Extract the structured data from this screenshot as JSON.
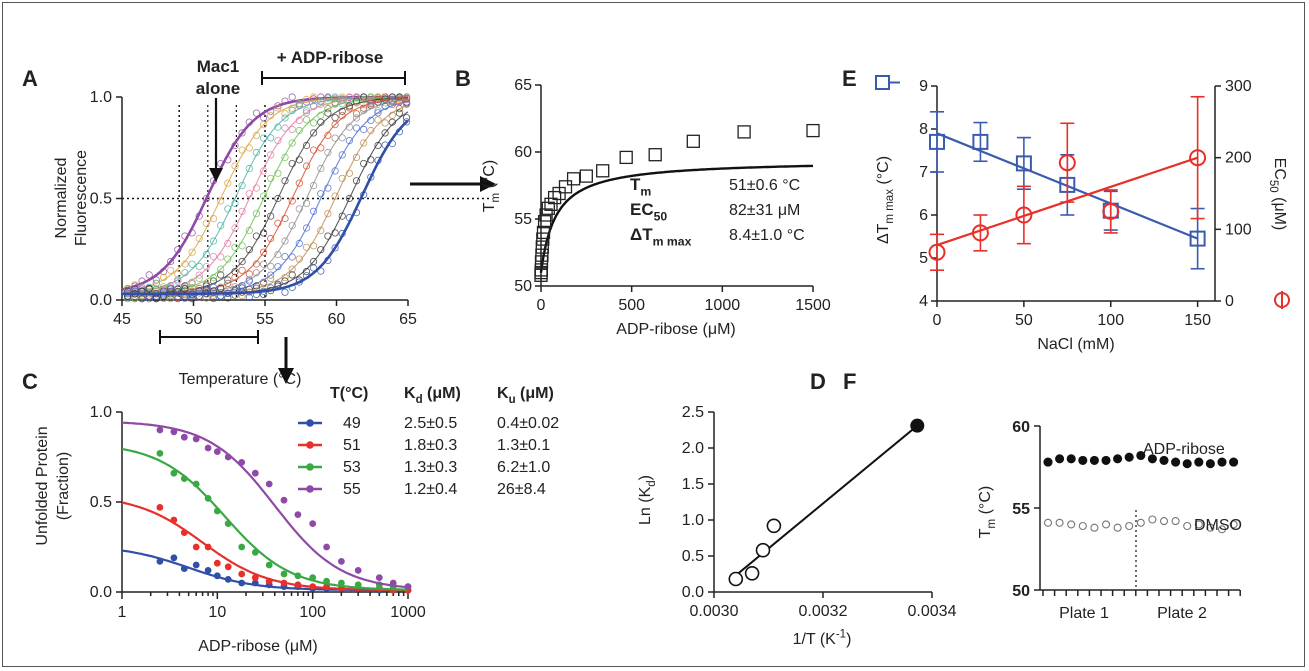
{
  "panels": [
    {
      "label": "A"
    },
    {
      "label": "B"
    },
    {
      "label": "C"
    },
    {
      "label": "D"
    },
    {
      "label": "E"
    },
    {
      "label": "F"
    }
  ],
  "annotations": {
    "mac1_line1": "Mac1",
    "mac1_line2": "alone",
    "adp_ribose": "+ ADP-ribose"
  },
  "panel_b_table": {
    "rows": [
      {
        "label": "T",
        "sub": "m",
        "value": "51±0.6 °C"
      },
      {
        "label": "EC",
        "sub": "50",
        "value": "82±31 μM"
      },
      {
        "label": "ΔT",
        "sub": "m max",
        "value": "8.4±1.0 °C"
      }
    ]
  },
  "panel_c_table": {
    "headers": [
      "T(°C)",
      "K",
      "K"
    ],
    "header_subs": [
      "",
      "d",
      "u"
    ],
    "header_units": [
      "",
      " (μM)",
      " (μM)"
    ],
    "rows": [
      {
        "t": "49",
        "kd": "2.5±0.5",
        "ku": "0.4±0.02",
        "color": "#2f4fa8"
      },
      {
        "t": "51",
        "kd": "1.8±0.3",
        "ku": "1.3±0.1",
        "color": "#e8302a"
      },
      {
        "t": "53",
        "kd": "1.3±0.3",
        "ku": "6.2±1.0",
        "color": "#3aa845"
      },
      {
        "t": "55",
        "kd": "1.2±0.4",
        "ku": "26±8.4",
        "color": "#8e4aa6"
      }
    ]
  },
  "panel_f_labels": {
    "adp": "ADP-ribose",
    "dmso": "DMSO"
  },
  "chart_data": [
    {
      "panel": "A",
      "type": "scatter",
      "xlabel": "Temperature (°C)",
      "ylabel_line1": "Normalized",
      "ylabel_line2": "Fluorescence",
      "xlim": [
        45,
        65
      ],
      "ylim": [
        0,
        1.0
      ],
      "xticks": [
        "45",
        "50",
        "55",
        "60",
        "65"
      ],
      "yticks": [
        "0.0",
        "0.5",
        "1.0"
      ],
      "series": [
        {
          "tm": 51.0,
          "color": "#8e4aa6"
        },
        {
          "tm": 52.0,
          "color": "#d6a23b"
        },
        {
          "tm": 53.0,
          "color": "#48b0a8"
        },
        {
          "tm": 54.0,
          "color": "#e07aa6"
        },
        {
          "tm": 55.0,
          "color": "#6dbf50"
        },
        {
          "tm": 56.0,
          "color": "#3a3a3a"
        },
        {
          "tm": 57.0,
          "color": "#d4492a"
        },
        {
          "tm": 58.0,
          "color": "#8c8c8c"
        },
        {
          "tm": 59.0,
          "color": "#4b6ad1"
        },
        {
          "tm": 60.0,
          "color": "#b98a4c"
        },
        {
          "tm": 61.0,
          "color": "#2f2f2f"
        },
        {
          "tm": 61.8,
          "color": "#2f4fa8"
        }
      ]
    },
    {
      "panel": "B",
      "type": "scatter",
      "xlabel": "ADP-ribose (μM)",
      "ylabel": "T",
      "ylabel_sub": "m",
      "ylabel_unit": " (°C)",
      "xlim": [
        0,
        1500
      ],
      "ylim": [
        50,
        65
      ],
      "xticks": [
        "0",
        "500",
        "1000",
        "1500"
      ],
      "yticks": [
        "50",
        "55",
        "60",
        "65"
      ],
      "x": [
        0,
        0.8,
        1.5,
        3,
        5,
        7,
        10,
        14,
        20,
        28,
        40,
        55,
        75,
        100,
        135,
        180,
        250,
        340,
        470,
        630,
        840,
        1120,
        1500
      ],
      "y": [
        50.8,
        51.0,
        51.2,
        51.8,
        52.3,
        52.9,
        53.5,
        54.0,
        54.8,
        55.3,
        55.8,
        56.1,
        56.6,
        56.9,
        57.4,
        58.0,
        58.2,
        58.6,
        59.6,
        59.8,
        60.8,
        61.5,
        61.6
      ],
      "fit": {
        "tm0": 51,
        "ec50": 82,
        "dtm": 8.4
      }
    },
    {
      "panel": "C",
      "type": "scatter",
      "xlabel": "ADP-ribose (μM)",
      "ylabel_line1": "Unfolded Protein",
      "ylabel_line2": "(Fraction)",
      "xscale": "log",
      "xlim": [
        1,
        1000
      ],
      "ylim": [
        0,
        1.0
      ],
      "xticks": [
        "1",
        "10",
        "100",
        "1000"
      ],
      "yticks": [
        "0.0",
        "0.5",
        "1.0"
      ],
      "series": [
        {
          "name": "49",
          "color": "#2f4fa8",
          "top": 0.25,
          "x": [
            2.5,
            3.5,
            4.5,
            6,
            8,
            10,
            13,
            18,
            25,
            35,
            50,
            70,
            100,
            140,
            200,
            300,
            500,
            700,
            1000
          ],
          "y": [
            0.17,
            0.19,
            0.13,
            0.15,
            0.12,
            0.09,
            0.07,
            0.05,
            0.05,
            0.04,
            0.03,
            0.03,
            0.02,
            0.02,
            0.02,
            0.02,
            0.01,
            0.01,
            0.01
          ]
        },
        {
          "name": "51",
          "color": "#e8302a",
          "top": 0.53,
          "x": [
            2.5,
            3.5,
            4.5,
            6,
            8,
            10,
            13,
            18,
            25,
            35,
            50,
            70,
            100,
            140,
            200,
            300,
            500,
            700,
            1000
          ],
          "y": [
            0.47,
            0.4,
            0.33,
            0.25,
            0.25,
            0.16,
            0.14,
            0.1,
            0.08,
            0.06,
            0.05,
            0.04,
            0.03,
            0.03,
            0.02,
            0.02,
            0.02,
            0.01,
            0.01
          ]
        },
        {
          "name": "53",
          "color": "#3aa845",
          "top": 0.82,
          "x": [
            2.5,
            3.5,
            4.5,
            6,
            8,
            10,
            13,
            18,
            25,
            35,
            50,
            70,
            100,
            140,
            200,
            300,
            500,
            700,
            1000
          ],
          "y": [
            0.77,
            0.66,
            0.63,
            0.6,
            0.52,
            0.45,
            0.38,
            0.25,
            0.22,
            0.15,
            0.1,
            0.09,
            0.08,
            0.06,
            0.05,
            0.04,
            0.04,
            0.03,
            0.03
          ]
        },
        {
          "name": "55",
          "color": "#8e4aa6",
          "top": 0.94,
          "x": [
            2.5,
            3.5,
            4.5,
            6,
            8,
            10,
            13,
            18,
            25,
            35,
            50,
            70,
            100,
            140,
            200,
            300,
            500,
            700,
            1000
          ],
          "y": [
            0.9,
            0.89,
            0.86,
            0.85,
            0.8,
            0.78,
            0.75,
            0.72,
            0.66,
            0.6,
            0.51,
            0.43,
            0.38,
            0.25,
            0.17,
            0.12,
            0.08,
            0.05,
            0.03
          ]
        }
      ]
    },
    {
      "panel": "D",
      "type": "scatter",
      "xlabel": "1/T (K",
      "xlabel_sup": "-1",
      "xlabel_end": ")",
      "ylabel": "Ln (K",
      "ylabel_sub": "d",
      "ylabel_end": ")",
      "xlim": [
        0.003,
        0.0034
      ],
      "ylim": [
        0.0,
        2.5
      ],
      "xticks": [
        "0.0030",
        "0.0032",
        "0.0034"
      ],
      "yticks": [
        "0.0",
        "0.5",
        "1.0",
        "1.5",
        "2.0",
        "2.5"
      ],
      "open_points": {
        "x": [
          0.00304,
          0.00307,
          0.00309,
          0.00311
        ],
        "y": [
          0.18,
          0.26,
          0.58,
          0.92
        ]
      },
      "filled_point": {
        "x": 0.003373,
        "y": 2.31
      },
      "fit_line": {
        "x": [
          0.00304,
          0.003373
        ],
        "y": [
          0.23,
          2.31
        ]
      }
    },
    {
      "panel": "E",
      "type": "scatter",
      "xlabel": "NaCl (mM)",
      "ylabel_left": "ΔT",
      "ylabel_left_sub": "m max",
      "ylabel_left_unit": " (°C)",
      "ylabel_right": "EC",
      "ylabel_right_sub": "50",
      "ylabel_right_unit": " (μM)",
      "xlim": [
        0,
        160
      ],
      "ylim_left": [
        4,
        9
      ],
      "ylim_right": [
        0,
        300
      ],
      "xticks": [
        "0",
        "50",
        "100",
        "150"
      ],
      "yticks_left": [
        "4",
        "5",
        "6",
        "7",
        "8",
        "9"
      ],
      "yticks_right": [
        "0",
        "100",
        "200",
        "300"
      ],
      "series": [
        {
          "axis": "left",
          "color": "#3a5bb0",
          "marker": "square",
          "x": [
            0,
            25,
            50,
            75,
            100,
            150
          ],
          "y": [
            7.7,
            7.7,
            7.2,
            6.7,
            6.1,
            5.45
          ],
          "err": [
            0.7,
            0.45,
            0.6,
            0.7,
            0.45,
            0.7
          ],
          "fit": [
            7.9,
            5.45
          ]
        },
        {
          "axis": "right",
          "color": "#e8302a",
          "marker": "circle",
          "x": [
            0,
            25,
            50,
            75,
            100,
            150
          ],
          "y": [
            68,
            95,
            120,
            193,
            125,
            200
          ],
          "err": [
            25,
            25,
            40,
            55,
            30,
            85
          ],
          "fit": [
            78,
            200
          ]
        }
      ]
    },
    {
      "panel": "F",
      "type": "scatter",
      "xlabel_plate1": "Plate 1",
      "xlabel_plate2": "Plate 2",
      "ylabel": "T",
      "ylabel_sub": "m",
      "ylabel_unit": " (°C)",
      "ylim": [
        50,
        60
      ],
      "yticks": [
        "50",
        "55",
        "60"
      ],
      "series": [
        {
          "name": "ADP-ribose",
          "fill": "#111111",
          "y": [
            57.8,
            58.0,
            58.0,
            57.9,
            57.9,
            57.9,
            58.0,
            58.1,
            58.2,
            58.0,
            57.9,
            57.8,
            57.7,
            57.8,
            57.7,
            57.8,
            57.8
          ]
        },
        {
          "name": "DMSO",
          "fill": "none",
          "y": [
            54.1,
            54.1,
            54.0,
            53.9,
            53.8,
            54.0,
            53.8,
            53.9,
            54.1,
            54.3,
            54.2,
            54.2,
            53.9,
            54.0,
            53.8,
            53.7,
            54.0
          ]
        }
      ]
    }
  ]
}
